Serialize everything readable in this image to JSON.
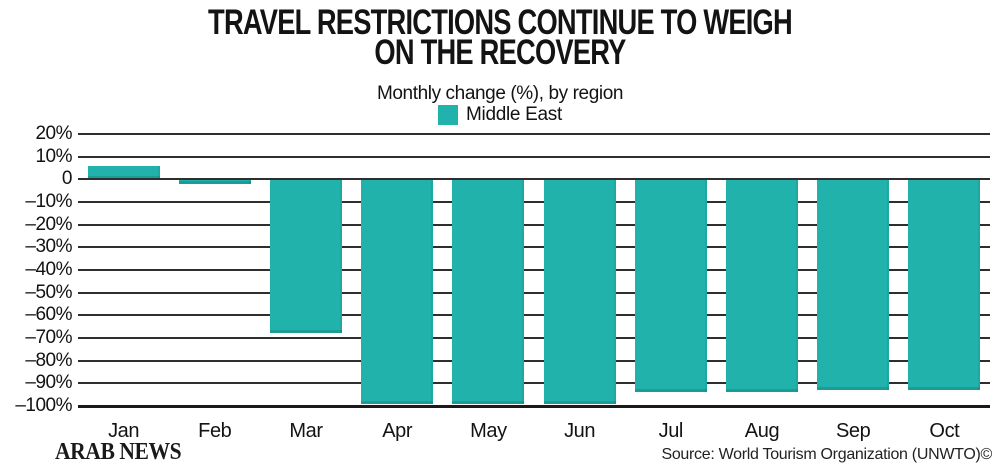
{
  "header": {
    "title_line1": "TRAVEL RESTRICTIONS CONTINUE TO WEIGH",
    "title_line2": "ON THE RECOVERY",
    "subtitle": "Monthly change (%), by region",
    "legend": {
      "label": "Middle East",
      "color": "#20B2AB"
    }
  },
  "footer": {
    "logo": "ARAB NEWS",
    "source": "Source: World Tourism Organization (UNWTO)©"
  },
  "colors": {
    "bar": "#20B2AB",
    "gridline": "#2e2e2e",
    "axis_bottom": "#1a1a1a",
    "text": "#131313"
  },
  "chart_data": {
    "type": "bar",
    "title": "TRAVEL RESTRICTIONS CONTINUE TO WEIGH ON THE RECOVERY",
    "subtitle": "Monthly change (%), by region",
    "categories": [
      "Jan",
      "Feb",
      "Mar",
      "Apr",
      "May",
      "Jun",
      "Jul",
      "Aug",
      "Sep",
      "Oct"
    ],
    "series": [
      {
        "name": "Middle East",
        "color": "#20B2AB",
        "values": [
          6,
          -2,
          -68,
          -99,
          -99,
          -99,
          -94,
          -94,
          -93,
          -93
        ]
      }
    ],
    "xlabel": "",
    "ylabel": "",
    "ylim": [
      -100,
      20
    ],
    "ytick_values": [
      20,
      10,
      0,
      -10,
      -20,
      -30,
      -40,
      -50,
      -60,
      -70,
      -80,
      -90,
      -100
    ],
    "ytick_labels": [
      "20%",
      "10%",
      "0",
      "–10%",
      "–20%",
      "–30%",
      "–40%",
      "–50%",
      "–60%",
      "–70%",
      "–80%",
      "–90%",
      "–100%"
    ],
    "grid": true,
    "legend_position": "top",
    "source": "Source: World Tourism Organization (UNWTO)©"
  }
}
